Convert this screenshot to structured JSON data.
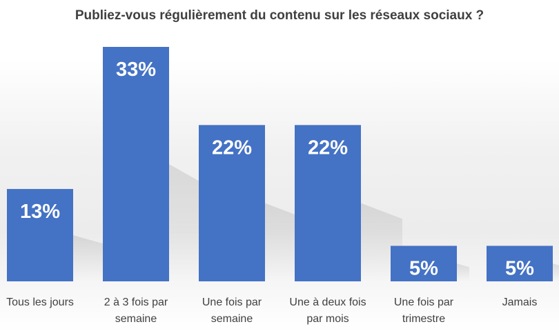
{
  "chart_data": {
    "type": "bar",
    "title": "Publiez-vous régulièrement du contenu sur les réseaux sociaux ?",
    "categories": [
      [
        "Tous les jours"
      ],
      [
        "2 à 3 fois par",
        "semaine"
      ],
      [
        "Une fois par",
        "semaine"
      ],
      [
        "Une à deux fois",
        "par mois"
      ],
      [
        "Une fois par",
        "trimestre"
      ],
      [
        "Jamais"
      ]
    ],
    "values": [
      13,
      33,
      22,
      22,
      5,
      5
    ],
    "value_labels": [
      "13%",
      "33%",
      "22%",
      "22%",
      "5%",
      "5%"
    ],
    "ylim": [
      0,
      35
    ],
    "grid": false,
    "bar_color": "#4472c4"
  }
}
